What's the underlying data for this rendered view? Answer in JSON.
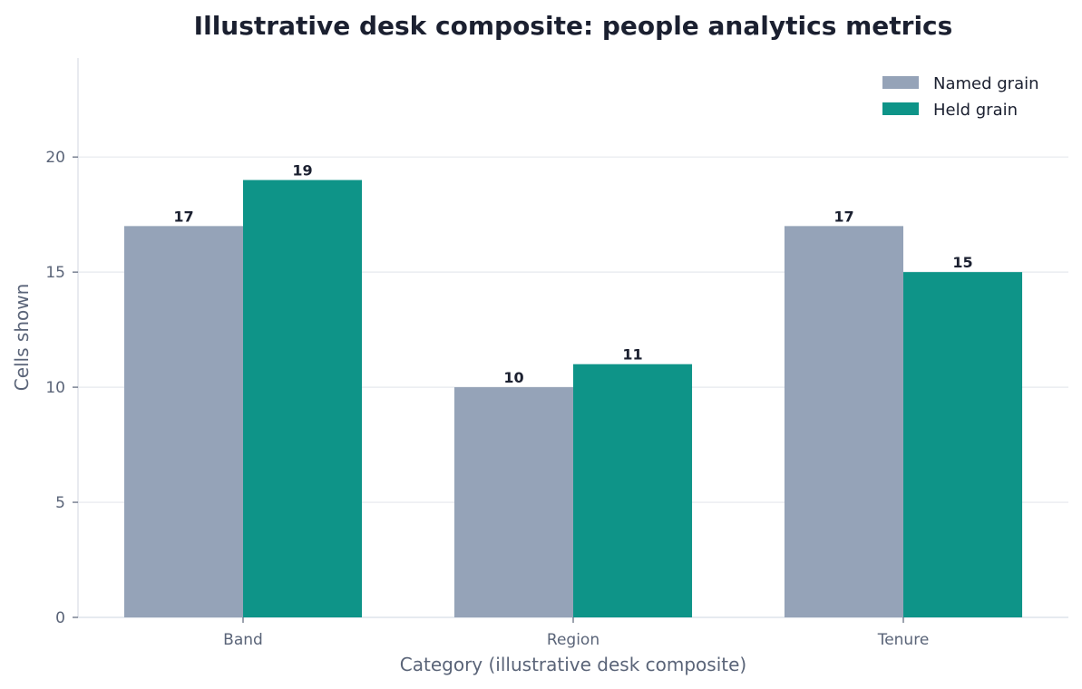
{
  "chart_data": {
    "type": "bar",
    "title": "Illustrative desk composite: people analytics metrics",
    "xlabel": "Category (illustrative desk composite)",
    "ylabel": "Cells shown",
    "categories": [
      "Band",
      "Region",
      "Tenure"
    ],
    "series": [
      {
        "name": "Named grain",
        "values": [
          17,
          10,
          17
        ],
        "color": "#95a3b8"
      },
      {
        "name": "Held grain",
        "values": [
          19,
          11,
          15
        ],
        "color": "#0e9488"
      }
    ],
    "ylim": [
      0,
      24.3
    ],
    "yticks": [
      0,
      5,
      10,
      15,
      20
    ],
    "grid": "horizontal",
    "legend": "top-right"
  }
}
